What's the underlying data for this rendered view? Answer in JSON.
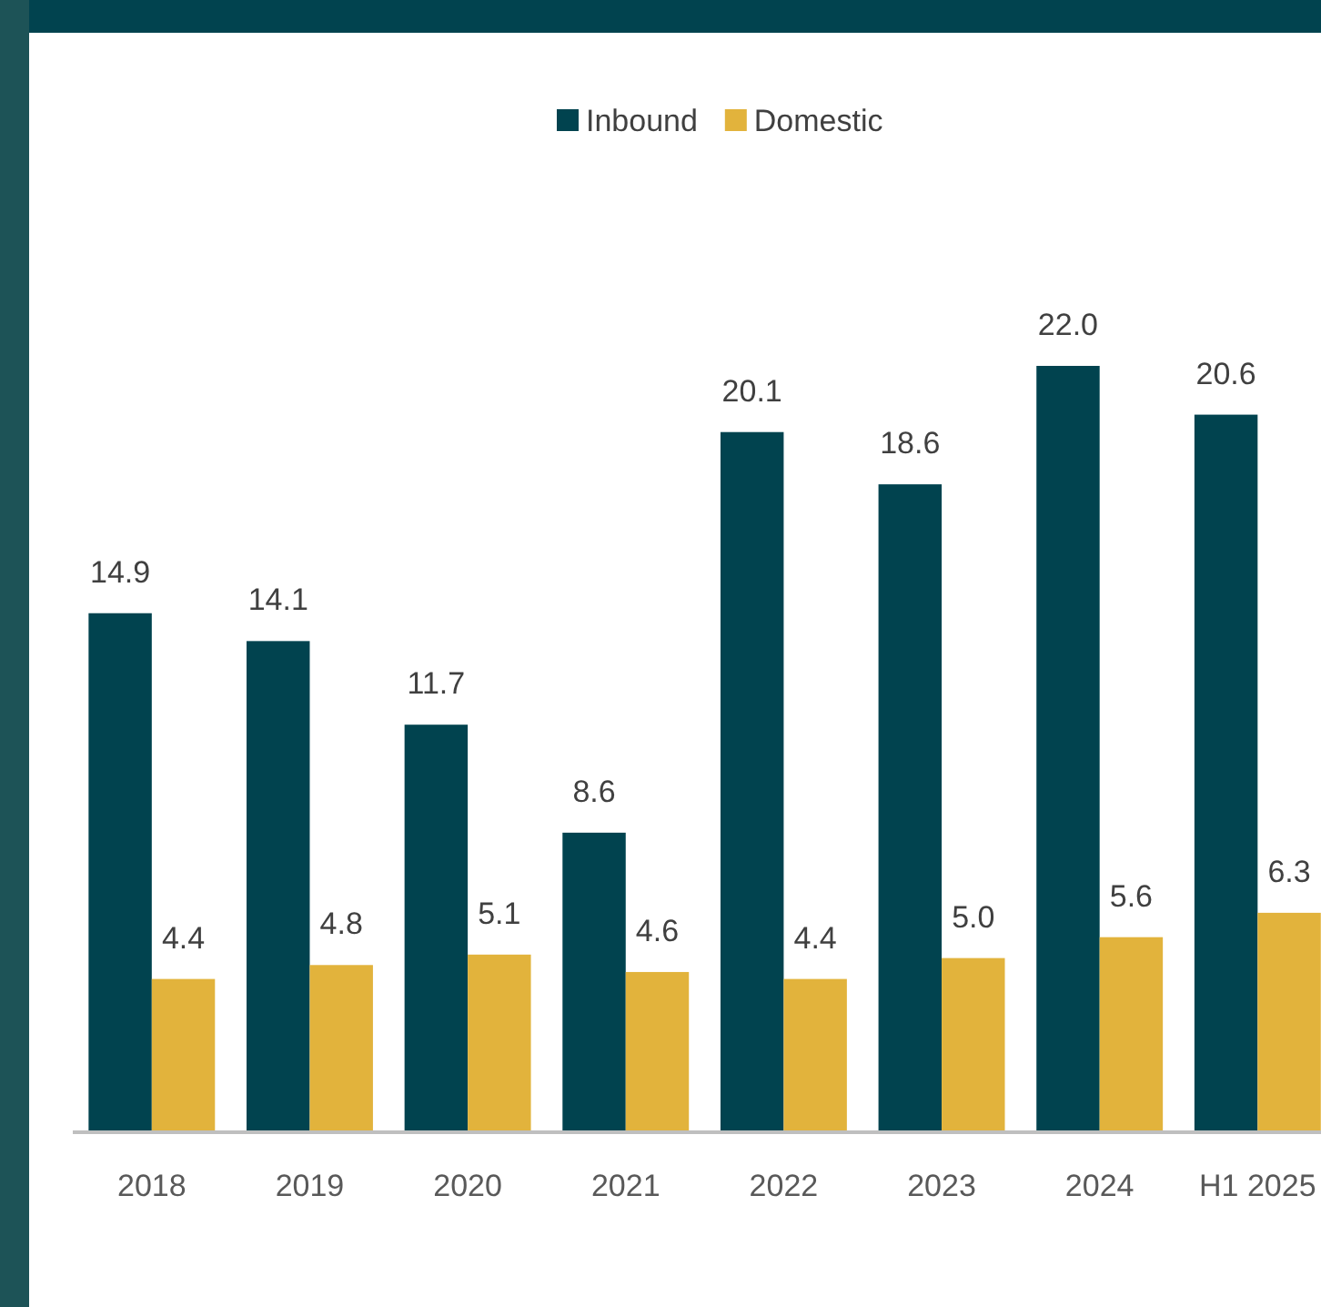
{
  "chart_data": {
    "type": "bar",
    "categories": [
      "2018",
      "2019",
      "2020",
      "2021",
      "2022",
      "2023",
      "2024",
      "H1 2025"
    ],
    "series": [
      {
        "name": "Inbound",
        "color": "#01434f",
        "values": [
          14.9,
          14.1,
          11.7,
          8.6,
          20.1,
          18.6,
          22.0,
          20.6
        ],
        "value_labels": [
          "14.9",
          "14.1",
          "11.7",
          "8.6",
          "20.1",
          "18.6",
          "22.0",
          "20.6"
        ]
      },
      {
        "name": "Domestic",
        "color": "#e2b33c",
        "values": [
          4.4,
          4.8,
          5.1,
          4.6,
          4.4,
          5.0,
          5.6,
          6.3
        ],
        "value_labels": [
          "4.4",
          "4.8",
          "5.1",
          "4.6",
          "4.4",
          "5.0",
          "5.6",
          "6.3"
        ]
      }
    ],
    "legend": "top",
    "tick_labels": "x"
  }
}
